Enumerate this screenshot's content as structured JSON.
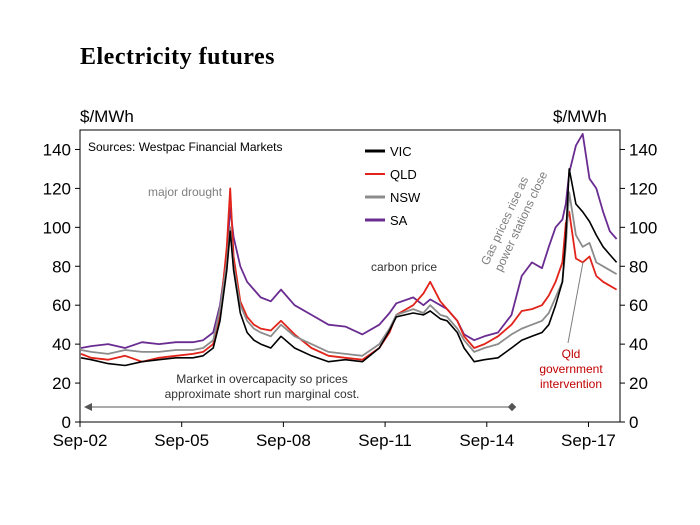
{
  "title": "Electricity futures",
  "chart_data": {
    "type": "line",
    "title": "Electricity futures",
    "ylabel_left": "$/MWh",
    "ylabel_right": "$/MWh",
    "source": "Sources: Westpac Financial Markets",
    "x_tick_labels": [
      "Sep-02",
      "Sep-05",
      "Sep-08",
      "Sep-11",
      "Sep-14",
      "Sep-17"
    ],
    "x_tick_years": [
      2002.67,
      2005.67,
      2008.67,
      2011.67,
      2014.67,
      2017.67
    ],
    "xlim": [
      2002.67,
      2018.6
    ],
    "ylim": [
      0,
      150
    ],
    "y_ticks": [
      0,
      20,
      40,
      60,
      80,
      100,
      120,
      140
    ],
    "y_tick_labels": [
      "0",
      "20",
      "40",
      "60",
      "80",
      "100",
      "120",
      "140"
    ],
    "legend": [
      "VIC",
      "QLD",
      "NSW",
      "SA"
    ],
    "series": [
      {
        "name": "SA",
        "color": "#6a2c91",
        "x": [
          2002.7,
          2003.0,
          2003.5,
          2004.0,
          2004.5,
          2005.0,
          2005.5,
          2006.0,
          2006.3,
          2006.6,
          2006.8,
          2007.0,
          2007.1,
          2007.2,
          2007.4,
          2007.6,
          2007.8,
          2008.0,
          2008.3,
          2008.6,
          2009.0,
          2009.5,
          2010.0,
          2010.5,
          2011.0,
          2011.5,
          2011.8,
          2012.0,
          2012.5,
          2012.8,
          2013.0,
          2013.3,
          2013.5,
          2013.8,
          2014.0,
          2014.3,
          2014.6,
          2015.0,
          2015.4,
          2015.7,
          2016.0,
          2016.3,
          2016.5,
          2016.7,
          2016.9,
          2017.0,
          2017.1,
          2017.3,
          2017.5,
          2017.7,
          2017.9,
          2018.1,
          2018.3,
          2018.5
        ],
        "values": [
          38,
          39,
          40,
          38,
          41,
          40,
          41,
          41,
          42,
          46,
          60,
          85,
          110,
          95,
          80,
          72,
          68,
          64,
          62,
          68,
          60,
          55,
          50,
          49,
          45,
          50,
          56,
          61,
          64,
          60,
          63,
          60,
          58,
          52,
          45,
          42,
          44,
          46,
          55,
          75,
          82,
          79,
          90,
          100,
          104,
          112,
          128,
          142,
          148,
          125,
          120,
          108,
          98,
          94
        ]
      },
      {
        "name": "QLD",
        "color": "#e2231a",
        "x": [
          2002.7,
          2003.0,
          2003.5,
          2004.0,
          2004.5,
          2005.0,
          2005.5,
          2006.0,
          2006.3,
          2006.6,
          2006.8,
          2007.0,
          2007.1,
          2007.2,
          2007.4,
          2007.6,
          2007.8,
          2008.0,
          2008.3,
          2008.6,
          2009.0,
          2009.5,
          2010.0,
          2010.5,
          2011.0,
          2011.5,
          2011.8,
          2012.0,
          2012.5,
          2012.8,
          2013.0,
          2013.3,
          2013.5,
          2013.8,
          2014.0,
          2014.3,
          2014.6,
          2015.0,
          2015.4,
          2015.7,
          2016.0,
          2016.3,
          2016.5,
          2016.7,
          2016.9,
          2017.0,
          2017.1,
          2017.3,
          2017.5,
          2017.7,
          2017.9,
          2018.1,
          2018.3,
          2018.5
        ],
        "values": [
          35,
          33,
          32,
          34,
          31,
          33,
          34,
          35,
          36,
          40,
          55,
          90,
          120,
          85,
          62,
          54,
          50,
          48,
          47,
          52,
          45,
          38,
          34,
          33,
          32,
          38,
          46,
          55,
          60,
          66,
          72,
          62,
          58,
          52,
          44,
          38,
          40,
          44,
          50,
          57,
          58,
          60,
          65,
          72,
          82,
          102,
          108,
          84,
          82,
          85,
          75,
          72,
          70,
          68
        ]
      },
      {
        "name": "NSW",
        "color": "#8c8c8c",
        "x": [
          2002.7,
          2003.0,
          2003.5,
          2004.0,
          2004.5,
          2005.0,
          2005.5,
          2006.0,
          2006.3,
          2006.6,
          2006.8,
          2007.0,
          2007.1,
          2007.2,
          2007.4,
          2007.6,
          2007.8,
          2008.0,
          2008.3,
          2008.6,
          2009.0,
          2009.5,
          2010.0,
          2010.5,
          2011.0,
          2011.5,
          2011.8,
          2012.0,
          2012.5,
          2012.8,
          2013.0,
          2013.3,
          2013.5,
          2013.8,
          2014.0,
          2014.3,
          2014.6,
          2015.0,
          2015.4,
          2015.7,
          2016.0,
          2016.3,
          2016.5,
          2016.7,
          2016.9,
          2017.0,
          2017.1,
          2017.3,
          2017.5,
          2017.7,
          2017.9,
          2018.1,
          2018.3,
          2018.5
        ],
        "values": [
          37,
          36,
          35,
          37,
          36,
          36,
          37,
          37,
          38,
          42,
          58,
          82,
          100,
          80,
          60,
          52,
          48,
          46,
          44,
          50,
          44,
          40,
          36,
          35,
          34,
          40,
          48,
          55,
          58,
          56,
          60,
          55,
          54,
          48,
          42,
          36,
          38,
          40,
          45,
          48,
          50,
          52,
          56,
          64,
          72,
          90,
          118,
          96,
          90,
          92,
          82,
          80,
          78,
          76
        ]
      },
      {
        "name": "VIC",
        "color": "#000000",
        "x": [
          2002.7,
          2003.0,
          2003.5,
          2004.0,
          2004.5,
          2005.0,
          2005.5,
          2006.0,
          2006.3,
          2006.6,
          2006.8,
          2007.0,
          2007.1,
          2007.2,
          2007.4,
          2007.6,
          2007.8,
          2008.0,
          2008.3,
          2008.6,
          2009.0,
          2009.5,
          2010.0,
          2010.5,
          2011.0,
          2011.5,
          2011.8,
          2012.0,
          2012.5,
          2012.8,
          2013.0,
          2013.3,
          2013.5,
          2013.8,
          2014.0,
          2014.3,
          2014.6,
          2015.0,
          2015.4,
          2015.7,
          2016.0,
          2016.3,
          2016.5,
          2016.7,
          2016.9,
          2017.0,
          2017.1,
          2017.3,
          2017.5,
          2017.7,
          2017.9,
          2018.1,
          2018.3,
          2018.5
        ],
        "values": [
          33,
          32,
          30,
          29,
          31,
          32,
          33,
          33,
          34,
          38,
          52,
          78,
          98,
          78,
          56,
          46,
          42,
          40,
          38,
          44,
          38,
          34,
          31,
          32,
          31,
          38,
          47,
          54,
          56,
          55,
          57,
          53,
          52,
          46,
          38,
          31,
          32,
          33,
          38,
          42,
          44,
          46,
          50,
          60,
          72,
          95,
          130,
          112,
          108,
          103,
          96,
          90,
          86,
          82
        ]
      }
    ],
    "annotations": {
      "drought": "major drought",
      "carbon": "carbon price",
      "gas_line1": "Gas prices rise as",
      "gas_line2": "power stations close",
      "overcap_line1": "Market in overcapacity so prices",
      "overcap_line2": "approximate short run marginal cost.",
      "qld_line1": "Qld",
      "qld_line2": "government",
      "qld_line3": "intervention"
    },
    "annotation_colors": {
      "drought": "#7f7f7f",
      "carbon": "#333333",
      "gas": "#7f7f7f",
      "overcap": "#333333",
      "qld": "#c00000"
    }
  }
}
